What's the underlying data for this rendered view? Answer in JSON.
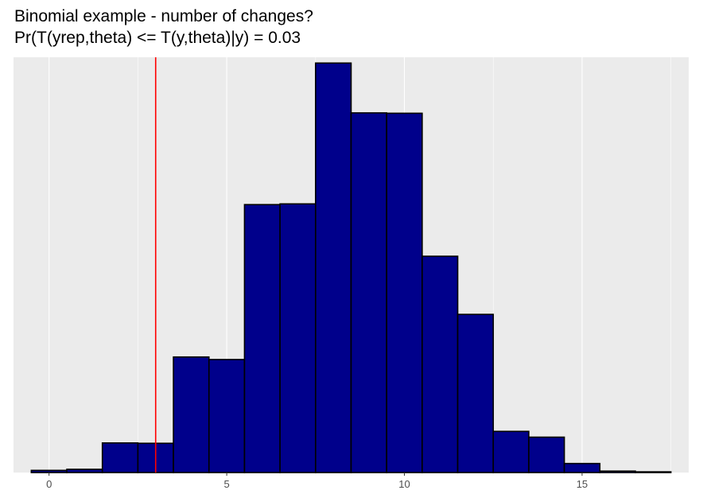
{
  "chart_data": {
    "type": "histogram",
    "title": "Binomial example - number of changes?",
    "subtitle": "Pr(T(yrep,theta) <= T(y,theta)|y) = 0.03",
    "xlabel": "",
    "ylabel": "",
    "xlim": [
      -1,
      18
    ],
    "x_ticks": [
      0,
      5,
      10,
      15
    ],
    "y_ticks_visible": false,
    "ylim": [
      0,
      1150
    ],
    "bin_width": 1,
    "bins": [
      {
        "x": 0,
        "count": 6
      },
      {
        "x": 1,
        "count": 9
      },
      {
        "x": 2,
        "count": 82
      },
      {
        "x": 3,
        "count": 81
      },
      {
        "x": 4,
        "count": 320
      },
      {
        "x": 5,
        "count": 313
      },
      {
        "x": 6,
        "count": 742
      },
      {
        "x": 7,
        "count": 744
      },
      {
        "x": 8,
        "count": 1134
      },
      {
        "x": 9,
        "count": 996
      },
      {
        "x": 10,
        "count": 995
      },
      {
        "x": 11,
        "count": 599
      },
      {
        "x": 12,
        "count": 438
      },
      {
        "x": 13,
        "count": 114
      },
      {
        "x": 14,
        "count": 98
      },
      {
        "x": 15,
        "count": 25
      },
      {
        "x": 16,
        "count": 4
      },
      {
        "x": 17,
        "count": 2
      }
    ],
    "observed_statistic": 3,
    "colors": {
      "bar_fill": "#00008b",
      "bar_outline": "#000000",
      "reference_line": "#ff0000",
      "panel_background": "#ebebeb",
      "grid": "#ffffff"
    },
    "grid": true
  }
}
